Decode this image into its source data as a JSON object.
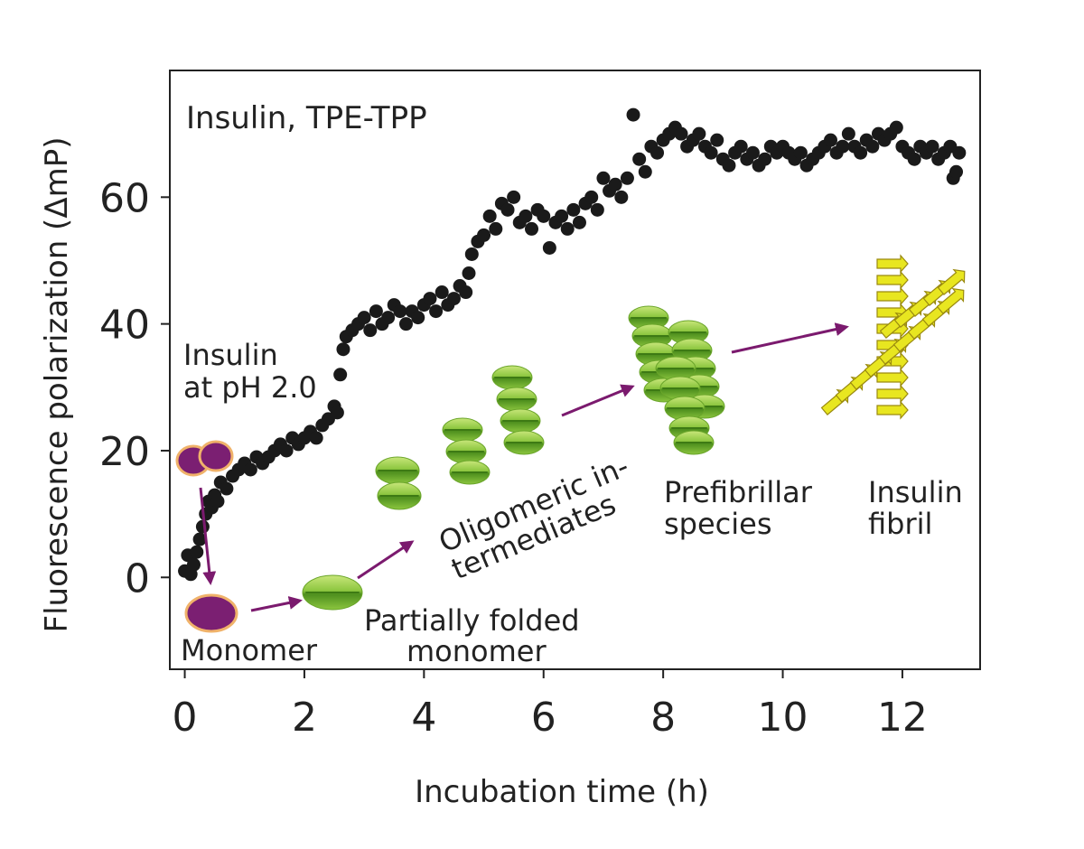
{
  "chart_data": {
    "type": "scatter",
    "title": "Insulin, TPE-TPP",
    "xlabel": "Incubation time (h)",
    "ylabel": "Fluorescence polarization (ΔmP)",
    "xlim": [
      -0.25,
      13.3
    ],
    "ylim": [
      -14.5,
      80
    ],
    "x_ticks": [
      0,
      2,
      4,
      6,
      8,
      10,
      12
    ],
    "y_ticks": [
      0,
      20,
      40,
      60
    ],
    "grid": false,
    "legend": "none",
    "marker_color": "#1a1a1a",
    "series": [
      {
        "x": [
          0.0,
          0.05,
          0.1,
          0.15,
          0.2,
          0.25,
          0.3,
          0.35,
          0.4,
          0.45,
          0.5,
          0.55,
          0.6,
          0.7,
          0.8,
          0.9,
          1.0,
          1.1,
          1.2,
          1.3,
          1.4,
          1.5,
          1.6,
          1.7,
          1.8,
          1.9,
          2.0,
          2.1,
          2.2,
          2.3,
          2.4,
          2.5,
          2.55,
          2.6,
          2.65,
          2.7,
          2.8,
          2.9,
          3.0,
          3.1,
          3.2,
          3.3,
          3.4,
          3.5,
          3.6,
          3.7,
          3.8,
          3.9,
          4.0,
          4.1,
          4.2,
          4.3,
          4.4,
          4.5,
          4.6,
          4.7,
          4.75,
          4.8,
          4.9,
          5.0,
          5.1,
          5.2,
          5.3,
          5.4,
          5.5,
          5.6,
          5.7,
          5.8,
          5.9,
          6.0,
          6.1,
          6.2,
          6.3,
          6.4,
          6.5,
          6.6,
          6.7,
          6.8,
          6.9,
          7.0,
          7.1,
          7.2,
          7.3,
          7.4,
          7.5,
          7.6,
          7.7,
          7.8,
          7.9,
          8.0,
          8.1,
          8.2,
          8.3,
          8.4,
          8.5,
          8.6,
          8.7,
          8.8,
          8.9,
          9.0,
          9.1,
          9.2,
          9.3,
          9.4,
          9.5,
          9.6,
          9.7,
          9.8,
          9.9,
          10.0,
          10.1,
          10.2,
          10.3,
          10.4,
          10.5,
          10.6,
          10.7,
          10.8,
          10.9,
          11.0,
          11.1,
          11.2,
          11.3,
          11.4,
          11.5,
          11.6,
          11.7,
          11.8,
          11.9,
          12.0,
          12.1,
          12.2,
          12.3,
          12.4,
          12.5,
          12.6,
          12.7,
          12.8,
          12.85,
          12.9,
          12.95
        ],
        "y": [
          1,
          3.5,
          0.5,
          2,
          4,
          6,
          8,
          10,
          12,
          11,
          13,
          12,
          15,
          14,
          16,
          17,
          18,
          17,
          19,
          18,
          19,
          20,
          21,
          20,
          22,
          21,
          22,
          23,
          22,
          24,
          25,
          27,
          26,
          32,
          36,
          38,
          39,
          40,
          41,
          39,
          42,
          40,
          41,
          43,
          42,
          40,
          42,
          41,
          43,
          44,
          42,
          45,
          43,
          44,
          46,
          45,
          48,
          51,
          53,
          54,
          57,
          55,
          59,
          58,
          60,
          56,
          57,
          55,
          58,
          57,
          52,
          56,
          57,
          55,
          58,
          56,
          59,
          60,
          58,
          63,
          61,
          62,
          60,
          63,
          73,
          66,
          64,
          68,
          67,
          69,
          70,
          71,
          70,
          68,
          69,
          70,
          68,
          67,
          69,
          66,
          65,
          67,
          68,
          66,
          67,
          65,
          66,
          68,
          67,
          68,
          67,
          66,
          67,
          65,
          66,
          67,
          68,
          69,
          67,
          68,
          70,
          68,
          67,
          69,
          68,
          70,
          69,
          70,
          71,
          68,
          67,
          66,
          68,
          67,
          68,
          66,
          67,
          68,
          63,
          64,
          67
        ]
      }
    ],
    "annotations": {
      "stage_start": [
        "Insulin",
        "at pH 2.0"
      ],
      "monomer": "Monomer",
      "partially_folded": [
        "Partially folded",
        "monomer"
      ],
      "oligomeric": [
        "Oligomeric in-",
        "termediates"
      ],
      "prefibrillar": [
        "Prefibrillar",
        "species"
      ],
      "fibril": [
        "Insulin",
        "fibril"
      ]
    },
    "colors": {
      "arrow": "#7b1a6e",
      "monomer_fill": "#7b1f72",
      "monomer_ring": "#f0b26a",
      "green": "#8cc63f",
      "green_dark": "#4e8f1e",
      "green_light": "#c8e67a",
      "fibril_yellow": "#e8e620",
      "fibril_dark": "#9a8a10"
    }
  }
}
